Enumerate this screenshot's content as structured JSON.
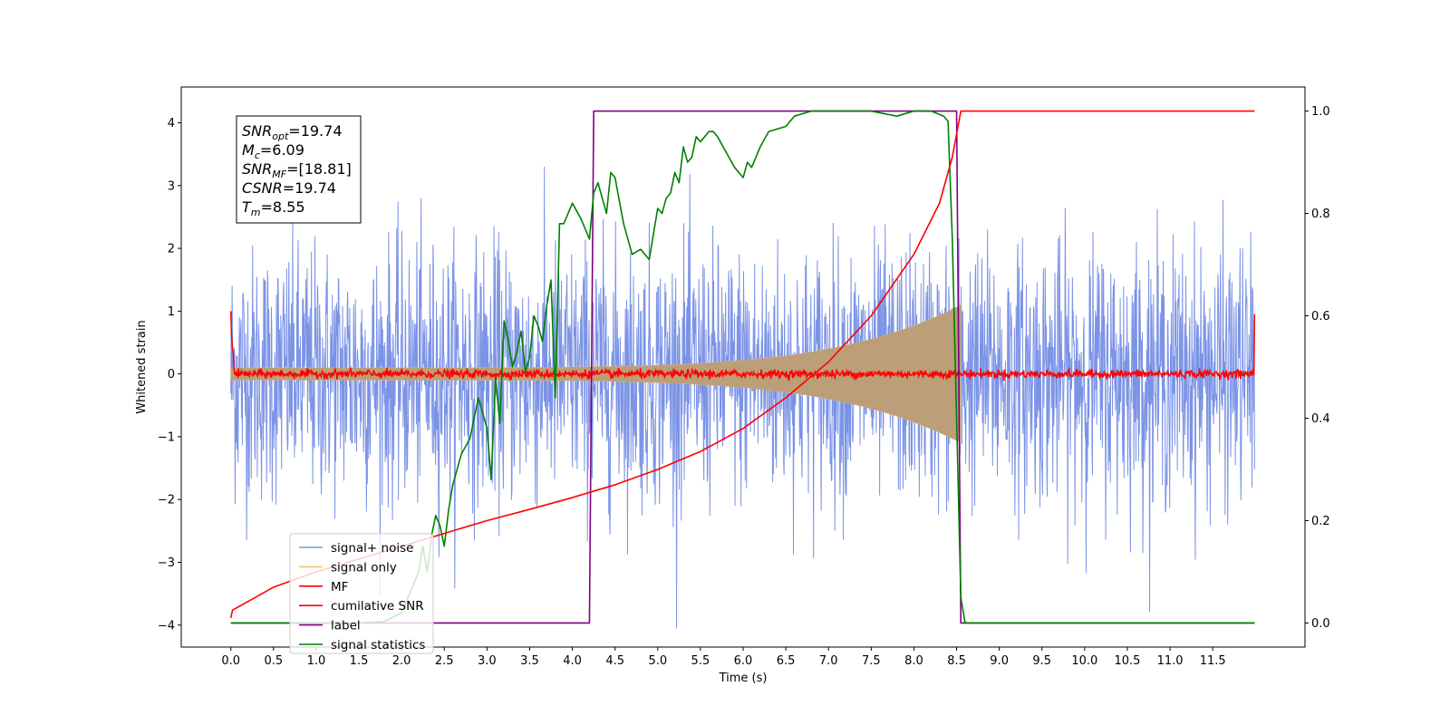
{
  "chart_data": {
    "type": "line",
    "xlabel": "Time (s)",
    "ylabel_left": "Whitened strain",
    "ylabel_right": "",
    "xlim": [
      -0.5806,
      12.5806
    ],
    "ylim_left": [
      -4.35,
      4.57
    ],
    "ylim_right": [
      -0.047,
      1.047
    ],
    "x_ticks": [
      0.0,
      0.5,
      1.0,
      1.5,
      2.0,
      2.5,
      3.0,
      3.5,
      4.0,
      4.5,
      5.0,
      5.5,
      6.0,
      6.5,
      7.0,
      7.5,
      8.0,
      8.5,
      9.0,
      9.5,
      10.0,
      10.5,
      11.0,
      11.5
    ],
    "x_tick_labels": [
      "0.0",
      "0.5",
      "1.0",
      "1.5",
      "2.0",
      "2.5",
      "3.0",
      "3.5",
      "4.0",
      "4.5",
      "5.0",
      "5.5",
      "6.0",
      "6.5",
      "7.0",
      "7.5",
      "8.0",
      "8.5",
      "9.0",
      "9.5",
      "10.0",
      "10.5",
      "11.0",
      "11.5"
    ],
    "y_ticks_left": [
      -4,
      -3,
      -2,
      -1,
      0,
      1,
      2,
      3,
      4
    ],
    "y_tick_labels_left": [
      "−4",
      "−3",
      "−2",
      "−1",
      "0",
      "1",
      "2",
      "3",
      "4"
    ],
    "y_ticks_right": [
      0.0,
      0.2,
      0.4,
      0.6,
      0.8,
      1.0
    ],
    "y_tick_labels_right": [
      "0.0",
      "0.2",
      "0.4",
      "0.6",
      "0.8",
      "1.0"
    ],
    "grid": false,
    "legend_position": "lower-left",
    "annotation": [
      {
        "base": "SNR",
        "sub": "opt",
        "rest": "=19.74"
      },
      {
        "base": "M",
        "sub": "c",
        "rest": "=6.09"
      },
      {
        "base": "SNR",
        "sub": "MF",
        "rest": "=[18.81]"
      },
      {
        "base": "CSNR",
        "sub": "",
        "rest": "=19.74"
      },
      {
        "base": "T",
        "sub": "m",
        "rest": "=8.55"
      }
    ],
    "series": [
      {
        "name": "signal+ noise",
        "axis": "left",
        "color": "#7b93e6",
        "kind": "noise",
        "x_range": [
          0.0,
          11.99
        ],
        "envelope_typical": 1.4,
        "envelope_max": 4.1
      },
      {
        "name": "signal only",
        "axis": "left",
        "color": "#f5c26b",
        "fill_color": "#bc9e79",
        "kind": "chirp",
        "x_range": [
          0.0,
          8.55
        ],
        "amplitude_start": 0.1,
        "amplitude_end": 1.1
      },
      {
        "name": "MF",
        "axis": "left",
        "color": "#ff0000",
        "kind": "noise",
        "x_range": [
          0.0,
          11.99
        ],
        "envelope_typical": 0.06,
        "start_value": 1.0,
        "end_value": 0.95
      },
      {
        "name": "cumilative SNR",
        "axis": "right",
        "color": "#ff0000",
        "x": [
          0.0,
          0.02,
          0.5,
          1.0,
          1.5,
          2.0,
          2.5,
          3.0,
          3.5,
          4.0,
          4.5,
          5.0,
          5.5,
          6.0,
          6.5,
          7.0,
          7.5,
          8.0,
          8.3,
          8.45,
          8.55,
          9.0,
          11.99
        ],
        "y": [
          0.01,
          0.025,
          0.07,
          0.1,
          0.125,
          0.15,
          0.175,
          0.2,
          0.222,
          0.245,
          0.27,
          0.3,
          0.335,
          0.38,
          0.44,
          0.51,
          0.6,
          0.72,
          0.82,
          0.91,
          1.0,
          1.0,
          1.0
        ]
      },
      {
        "name": "label",
        "axis": "right",
        "color": "#800080",
        "x": [
          0.0,
          4.2,
          4.25,
          8.5,
          8.55,
          11.99
        ],
        "y": [
          0.0,
          0.0,
          1.0,
          1.0,
          0.0,
          0.0
        ]
      },
      {
        "name": "signal statistics",
        "axis": "right",
        "color": "#008000",
        "x": [
          0.0,
          0.5,
          1.0,
          1.5,
          1.8,
          2.0,
          2.1,
          2.2,
          2.25,
          2.3,
          2.35,
          2.4,
          2.45,
          2.5,
          2.55,
          2.6,
          2.7,
          2.8,
          2.9,
          3.0,
          3.05,
          3.1,
          3.15,
          3.2,
          3.25,
          3.3,
          3.35,
          3.4,
          3.45,
          3.5,
          3.55,
          3.6,
          3.65,
          3.7,
          3.75,
          3.8,
          3.85,
          3.9,
          4.0,
          4.1,
          4.2,
          4.25,
          4.3,
          4.35,
          4.4,
          4.45,
          4.5,
          4.6,
          4.7,
          4.8,
          4.9,
          5.0,
          5.05,
          5.1,
          5.15,
          5.2,
          5.25,
          5.3,
          5.35,
          5.4,
          5.45,
          5.5,
          5.55,
          5.6,
          5.65,
          5.7,
          5.8,
          5.9,
          6.0,
          6.05,
          6.1,
          6.2,
          6.3,
          6.5,
          6.6,
          6.8,
          7.0,
          7.5,
          7.8,
          8.0,
          8.2,
          8.35,
          8.4,
          8.45,
          8.5,
          8.55,
          8.6,
          11.99
        ],
        "y": [
          0.0,
          0.0,
          0.0,
          0.0,
          0.003,
          0.02,
          0.06,
          0.1,
          0.15,
          0.1,
          0.17,
          0.21,
          0.19,
          0.15,
          0.22,
          0.27,
          0.33,
          0.36,
          0.44,
          0.38,
          0.28,
          0.48,
          0.39,
          0.59,
          0.55,
          0.5,
          0.53,
          0.57,
          0.49,
          0.52,
          0.6,
          0.58,
          0.55,
          0.62,
          0.67,
          0.44,
          0.78,
          0.78,
          0.82,
          0.79,
          0.75,
          0.84,
          0.86,
          0.83,
          0.8,
          0.88,
          0.87,
          0.78,
          0.72,
          0.73,
          0.71,
          0.81,
          0.8,
          0.83,
          0.84,
          0.88,
          0.86,
          0.93,
          0.9,
          0.91,
          0.95,
          0.94,
          0.95,
          0.96,
          0.96,
          0.95,
          0.92,
          0.89,
          0.87,
          0.9,
          0.89,
          0.93,
          0.96,
          0.97,
          0.99,
          1.0,
          1.0,
          1.0,
          0.99,
          1.0,
          1.0,
          0.99,
          0.98,
          0.75,
          0.4,
          0.05,
          0.0,
          0.0
        ]
      }
    ]
  }
}
